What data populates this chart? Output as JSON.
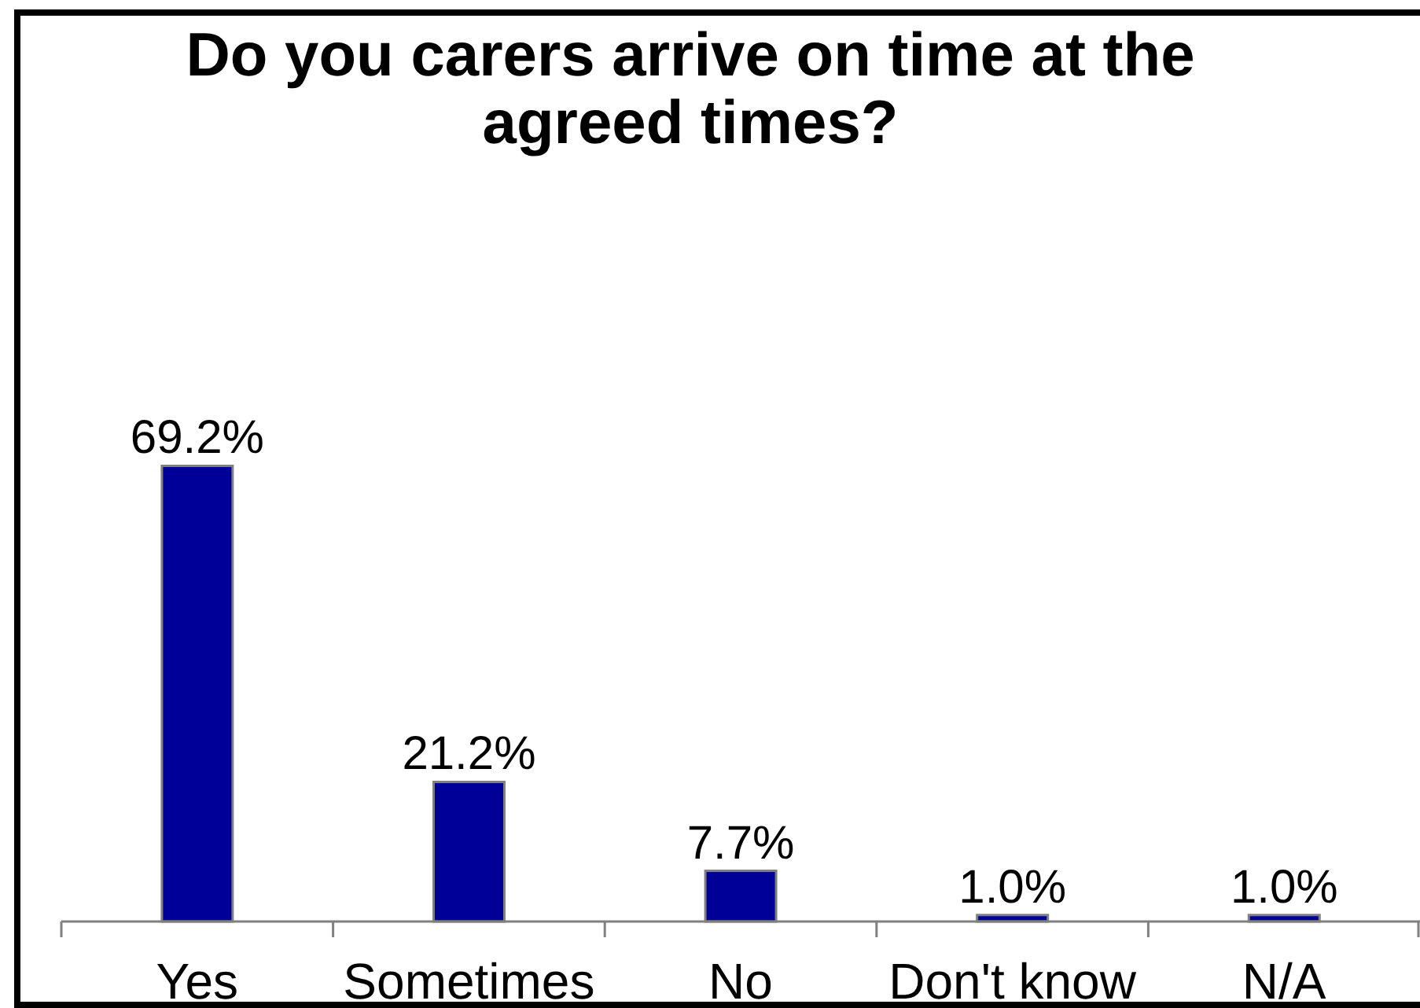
{
  "chart_data": {
    "type": "bar",
    "title": "Do you carers arrive on time at the agreed times?",
    "categories": [
      "Yes",
      "Sometimes",
      "No",
      "Don't know",
      "N/A"
    ],
    "values": [
      69.2,
      21.2,
      7.7,
      1.0,
      1.0
    ],
    "value_labels": [
      "69.2%",
      "21.2%",
      "7.7%",
      "1.0%",
      "1.0%"
    ],
    "color": "#000099"
  }
}
